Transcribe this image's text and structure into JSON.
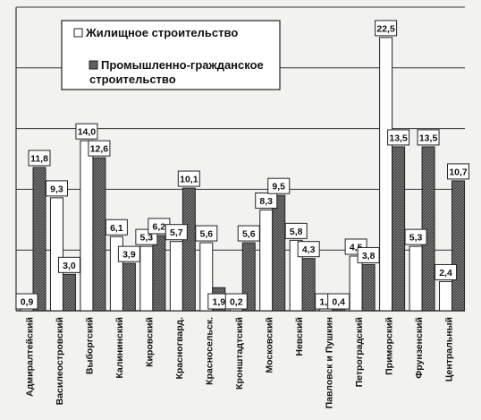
{
  "chart_data": {
    "type": "bar",
    "categories": [
      "Адмиралтейский",
      "Василеостровский",
      "Выборгский",
      "Калининский",
      "Кировский",
      "Красногвард.",
      "Красносельск.",
      "Кронштадтский",
      "Московский",
      "Невский",
      "Павловск и Пушкин",
      "Петроградский",
      "Приморский",
      "Фрунзенский",
      "Центральный"
    ],
    "series": [
      {
        "name": "Жилищное строительство",
        "values": [
          0.9,
          9.3,
          14.0,
          6.1,
          5.3,
          5.7,
          5.6,
          0.2,
          8.3,
          5.8,
          1.4,
          4.5,
          22.5,
          5.3,
          2.4
        ],
        "labels": [
          "0,9",
          "9,3",
          "14,0",
          "6,1",
          "5,3",
          "5,7",
          "5,6",
          "0,2",
          "8,3",
          "5,8",
          "1,4",
          "4,5",
          "22,5",
          "5,3",
          "2,4"
        ]
      },
      {
        "name": "Промышленно-гражданское строительство",
        "values": [
          11.8,
          3.0,
          12.6,
          3.9,
          6.2,
          10.1,
          1.9,
          5.6,
          9.5,
          4.3,
          0.4,
          3.8,
          13.5,
          13.5,
          10.7
        ],
        "labels": [
          "11,8",
          "3,0",
          "12,6",
          "3,9",
          "6,2",
          "10,1",
          "1,9",
          "5,6",
          "9,5",
          "4,3",
          "0,4",
          "3,8",
          "13,5",
          "13,5",
          "10,7"
        ]
      }
    ],
    "ylim": [
      0,
      25
    ],
    "grid": true,
    "legend_position": "top-left",
    "colors": {
      "series1": "#ffffff",
      "series2": "#6e6e6e",
      "grid": "#333333",
      "bar_stroke": "#222222"
    }
  },
  "legend": {
    "item1": "Жилищное строительство",
    "item2_line1": "Промышленно-гражданское",
    "item2_line2": "строительство"
  }
}
